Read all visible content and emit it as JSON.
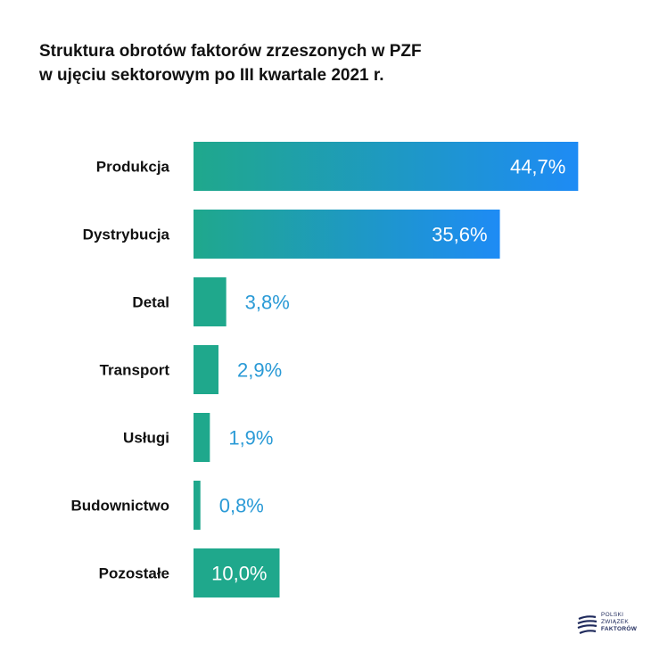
{
  "title": {
    "line1": "Struktura obrotów faktorów zrzeszonych w PZF",
    "line2": "w ujęciu sektorowym po III kwartale 2021 r."
  },
  "colors": {
    "bar_gradient_start": "#1fa88c",
    "bar_gradient_end": "#1e8bf5",
    "bar_solid": "#1fa88c",
    "value_outside": "#2a9ad6",
    "value_inside": "#ffffff",
    "logo": "#1f2a5c"
  },
  "chart_data": {
    "type": "bar",
    "orientation": "horizontal",
    "categories": [
      "Produkcja",
      "Dystrybucja",
      "Detal",
      "Transport",
      "Usługi",
      "Budownictwo",
      "Pozostałe"
    ],
    "values": [
      44.7,
      35.6,
      3.8,
      2.9,
      1.9,
      0.8,
      10.0
    ],
    "value_labels": [
      "44,7%",
      "35,6%",
      "3,8%",
      "2,9%",
      "1,9%",
      "0,8%",
      "10,0%"
    ],
    "title": "Struktura obrotów faktorów zrzeszonych w PZF w ujęciu sektorowym po III kwartale 2021 r.",
    "xlabel": "",
    "ylabel": "",
    "grid": false,
    "legend": "none"
  },
  "logo": {
    "line1": "POLSKI",
    "line2": "ZWIĄZEK",
    "line3": "FAKTORÓW",
    "icon": "pzf-wave-icon"
  }
}
